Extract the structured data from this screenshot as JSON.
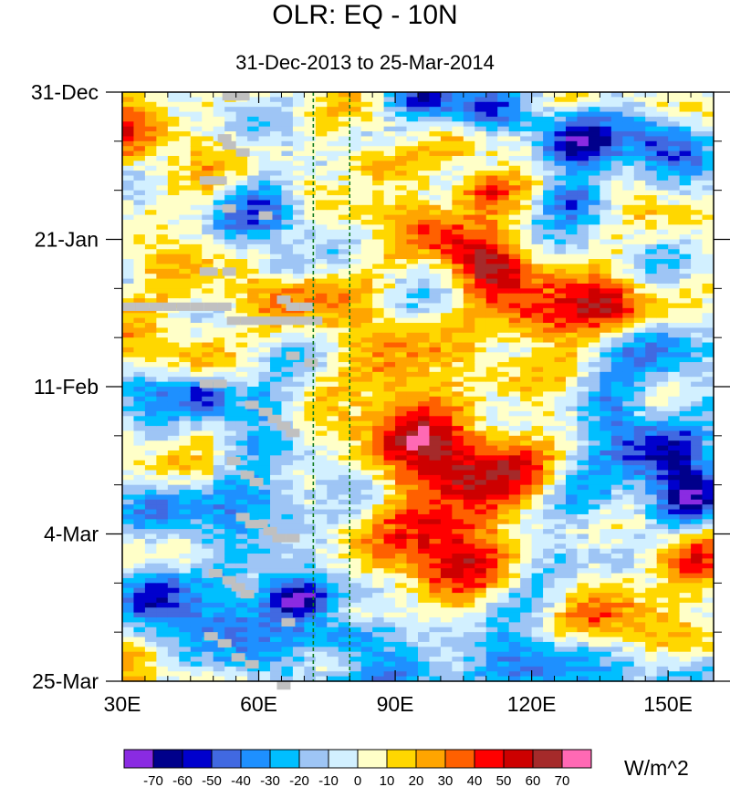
{
  "chart_data": {
    "type": "heatmap",
    "title": "OLR: EQ - 10N",
    "subtitle": "31-Dec-2013 to 25-Mar-2014",
    "xlabel": "",
    "ylabel": "",
    "x_range": [
      30,
      160
    ],
    "y_range_days": [
      0,
      84
    ],
    "x_ticks": [
      {
        "value": 30,
        "label": "30E"
      },
      {
        "value": 60,
        "label": "60E"
      },
      {
        "value": 90,
        "label": "90E"
      },
      {
        "value": 120,
        "label": "120E"
      },
      {
        "value": 150,
        "label": "150E"
      }
    ],
    "y_ticks": [
      {
        "day": 0,
        "label": "31-Dec"
      },
      {
        "day": 21,
        "label": "21-Jan"
      },
      {
        "day": 42,
        "label": "11-Feb"
      },
      {
        "day": 63,
        "label": "4-Mar"
      },
      {
        "day": 84,
        "label": "25-Mar"
      }
    ],
    "reference_lines_lon": [
      72,
      80
    ],
    "colorbar": {
      "units": "W/m^2",
      "levels": [
        -70,
        -60,
        -50,
        -40,
        -30,
        -20,
        -10,
        0,
        10,
        20,
        30,
        40,
        50,
        60,
        70
      ],
      "colors": [
        "#8a2be2",
        "#00008b",
        "#0000cd",
        "#4169e1",
        "#1e90ff",
        "#00bfff",
        "#9ec5f5",
        "#d2f0ff",
        "#ffffc8",
        "#ffd700",
        "#ffa500",
        "#ff6000",
        "#ff0000",
        "#cd0000",
        "#a52a2a",
        "#ff69b4"
      ]
    },
    "features": [
      {
        "lon": 110,
        "day": 14,
        "value": 55,
        "sigma": [
          5,
          2
        ]
      },
      {
        "lon": 100,
        "day": 19,
        "value": 30,
        "sigma": [
          8,
          3
        ]
      },
      {
        "lon": 110,
        "day": 25,
        "value": 55,
        "sigma": [
          6,
          3
        ]
      },
      {
        "lon": 122,
        "day": 32,
        "value": 55,
        "sigma": [
          8,
          3
        ]
      },
      {
        "lon": 137,
        "day": 30,
        "value": 45,
        "sigma": [
          6,
          2.5
        ]
      },
      {
        "lon": 90,
        "day": 42,
        "value": 35,
        "sigma": [
          7,
          5
        ]
      },
      {
        "lon": 100,
        "day": 51,
        "value": 42,
        "sigma": [
          10,
          5
        ]
      },
      {
        "lon": 102,
        "day": 64,
        "value": 55,
        "sigma": [
          9,
          6
        ]
      },
      {
        "lon": 118,
        "day": 54,
        "value": 28,
        "sigma": [
          10,
          4
        ]
      },
      {
        "lon": 85,
        "day": 10,
        "value": 40,
        "sigma": [
          5,
          2
        ]
      },
      {
        "lon": 70,
        "day": 28,
        "value": 25,
        "sigma": [
          10,
          4
        ]
      },
      {
        "lon": 155,
        "day": 66,
        "value": 35,
        "sigma": [
          6,
          4
        ]
      },
      {
        "lon": 140,
        "day": 75,
        "value": 28,
        "sigma": [
          10,
          4
        ]
      },
      {
        "lon": 96,
        "day": 1,
        "value": -55,
        "sigma": [
          5,
          2
        ]
      },
      {
        "lon": 110,
        "day": 3,
        "value": -40,
        "sigma": [
          6,
          2
        ]
      },
      {
        "lon": 130,
        "day": 8,
        "value": -60,
        "sigma": [
          6,
          3
        ]
      },
      {
        "lon": 148,
        "day": 7,
        "value": -50,
        "sigma": [
          6,
          3
        ]
      },
      {
        "lon": 128,
        "day": 15,
        "value": -40,
        "sigma": [
          5,
          2
        ]
      },
      {
        "lon": 62,
        "day": 17,
        "value": -45,
        "sigma": [
          6,
          3
        ]
      },
      {
        "lon": 65,
        "day": 25,
        "value": -30,
        "sigma": [
          4,
          2
        ]
      },
      {
        "lon": 35,
        "day": 42,
        "value": -40,
        "sigma": [
          6,
          3
        ]
      },
      {
        "lon": 48,
        "day": 43,
        "value": -60,
        "sigma": [
          4,
          2
        ]
      },
      {
        "lon": 60,
        "day": 45,
        "value": -35,
        "sigma": [
          6,
          3
        ]
      },
      {
        "lon": 148,
        "day": 50,
        "value": -55,
        "sigma": [
          8,
          3
        ]
      },
      {
        "lon": 155,
        "day": 58,
        "value": -60,
        "sigma": [
          6,
          4
        ]
      },
      {
        "lon": 132,
        "day": 58,
        "value": -40,
        "sigma": [
          8,
          3
        ]
      },
      {
        "lon": 138,
        "day": 45,
        "value": -40,
        "sigma": [
          5,
          3
        ]
      },
      {
        "lon": 40,
        "day": 59,
        "value": -40,
        "sigma": [
          7,
          3
        ]
      },
      {
        "lon": 60,
        "day": 59,
        "value": -45,
        "sigma": [
          8,
          3
        ]
      },
      {
        "lon": 36,
        "day": 71,
        "value": -65,
        "sigma": [
          6,
          3
        ]
      },
      {
        "lon": 55,
        "day": 75,
        "value": -50,
        "sigma": [
          10,
          4
        ]
      },
      {
        "lon": 68,
        "day": 72,
        "value": -55,
        "sigma": [
          5,
          2
        ]
      },
      {
        "lon": 80,
        "day": 78,
        "value": -55,
        "sigma": [
          6,
          2
        ]
      },
      {
        "lon": 95,
        "day": 84,
        "value": -40,
        "sigma": [
          10,
          3
        ]
      },
      {
        "lon": 120,
        "day": 82,
        "value": -35,
        "sigma": [
          10,
          3
        ]
      },
      {
        "lon": 150,
        "day": 82,
        "value": -25,
        "sigma": [
          8,
          3
        ]
      },
      {
        "lon": 120,
        "day": 72,
        "value": -25,
        "sigma": [
          8,
          3
        ]
      },
      {
        "lon": 150,
        "day": 36,
        "value": -35,
        "sigma": [
          8,
          3
        ]
      },
      {
        "lon": 33,
        "day": 5,
        "value": 20,
        "sigma": [
          5,
          4
        ]
      },
      {
        "lon": 42,
        "day": 35,
        "value": 15,
        "sigma": [
          10,
          4
        ]
      }
    ],
    "missing_cells": [
      [
        52,
        0
      ],
      [
        53,
        0
      ],
      [
        55,
        0
      ],
      [
        51,
        6
      ],
      [
        52,
        7
      ],
      [
        55,
        8
      ],
      [
        47,
        12
      ],
      [
        48,
        12
      ],
      [
        50,
        12
      ],
      [
        52,
        16
      ],
      [
        60,
        17
      ],
      [
        47,
        25
      ],
      [
        48,
        25
      ],
      [
        52,
        25
      ],
      [
        30,
        30
      ],
      [
        33,
        30
      ],
      [
        36,
        30
      ],
      [
        39,
        30
      ],
      [
        42,
        30
      ],
      [
        45,
        30
      ],
      [
        48,
        30
      ],
      [
        51,
        30
      ],
      [
        64,
        29
      ],
      [
        66,
        30
      ],
      [
        69,
        30
      ],
      [
        53,
        32
      ],
      [
        56,
        32
      ],
      [
        59,
        32
      ],
      [
        62,
        32
      ],
      [
        65,
        32
      ],
      [
        68,
        32
      ],
      [
        71,
        32
      ],
      [
        66,
        37
      ],
      [
        70,
        38
      ],
      [
        47,
        41
      ],
      [
        50,
        41
      ],
      [
        57,
        44
      ],
      [
        60,
        45
      ],
      [
        62,
        46
      ],
      [
        64,
        47
      ],
      [
        66,
        48
      ],
      [
        53,
        52
      ],
      [
        56,
        54
      ],
      [
        58,
        55
      ],
      [
        55,
        60
      ],
      [
        57,
        61
      ],
      [
        59,
        61
      ],
      [
        61,
        62
      ],
      [
        63,
        63
      ],
      [
        66,
        63
      ],
      [
        49,
        68
      ],
      [
        52,
        69
      ],
      [
        54,
        70
      ],
      [
        56,
        71
      ],
      [
        65,
        75
      ],
      [
        48,
        77
      ],
      [
        51,
        78
      ],
      [
        54,
        80
      ],
      [
        57,
        81
      ],
      [
        64,
        84
      ]
    ]
  }
}
